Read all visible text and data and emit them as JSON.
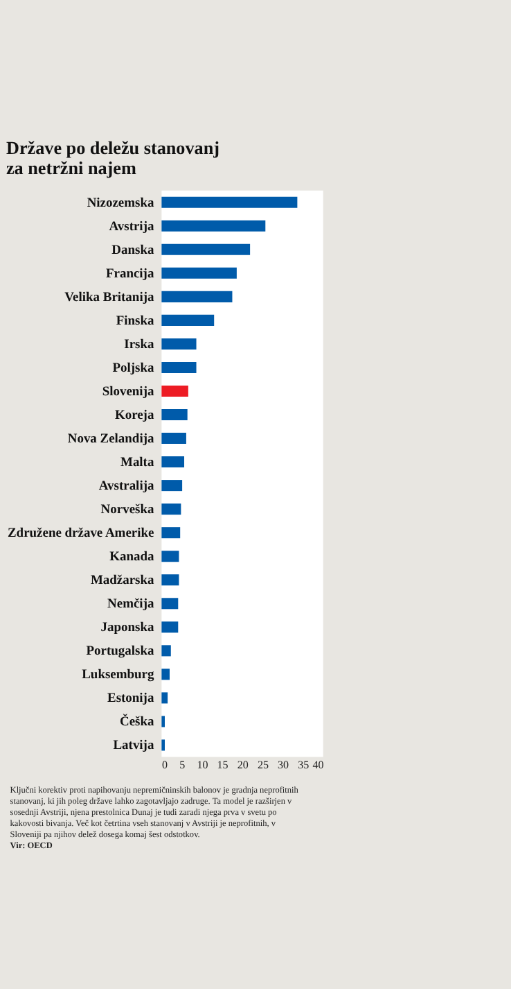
{
  "chart_data": {
    "type": "bar",
    "orientation": "horizontal",
    "title": "Države po deležu stanovanj za netržni najem",
    "categories": [
      "Nizozemska",
      "Avstrija",
      "Danska",
      "Francija",
      "Velika Britanija",
      "Finska",
      "Irska",
      "Poljska",
      "Slovenija",
      "Koreja",
      "Nova Zelandija",
      "Malta",
      "Avstralija",
      "Norveška",
      "Združene države Amerike",
      "Kanada",
      "Madžarska",
      "Nemčija",
      "Japonska",
      "Portugalska",
      "Luksemburg",
      "Estonija",
      "Češka",
      "Latvija"
    ],
    "values": [
      33.6,
      25.7,
      21.9,
      18.6,
      17.5,
      13.0,
      8.6,
      8.6,
      6.6,
      6.4,
      6.1,
      5.6,
      5.1,
      4.8,
      4.6,
      4.3,
      4.3,
      4.1,
      4.1,
      2.3,
      2.0,
      1.5,
      0.8,
      0.8
    ],
    "colors": [
      "#005baa",
      "#005baa",
      "#005baa",
      "#005baa",
      "#005baa",
      "#005baa",
      "#005baa",
      "#005baa",
      "#ed1c24",
      "#005baa",
      "#005baa",
      "#005baa",
      "#005baa",
      "#005baa",
      "#005baa",
      "#005baa",
      "#005baa",
      "#005baa",
      "#005baa",
      "#005baa",
      "#005baa",
      "#005baa",
      "#005baa",
      "#005baa"
    ],
    "xlim": [
      0,
      40
    ],
    "xticks": [
      0,
      5,
      10,
      15,
      20,
      25,
      30,
      35,
      40
    ],
    "grid": false,
    "annotations": [
      "Ključni korektiv proti napihovanju nepremičninskih balonov je gradnja neprofitnih stanovanj, ki jih poleg države lahko zagotavljajo zadruge. Ta model je razširjen v sosednji Avstriji, njena prestolnica Dunaj je tudi zaradi njega prva v svetu po kakovosti bivanja. Več kot četrtina vseh stanovanj v Avstriji je neprofitnih, v Sloveniji pa njihov delež dosega komaj šest odstotkov.",
      "Vir: OECD"
    ]
  }
}
